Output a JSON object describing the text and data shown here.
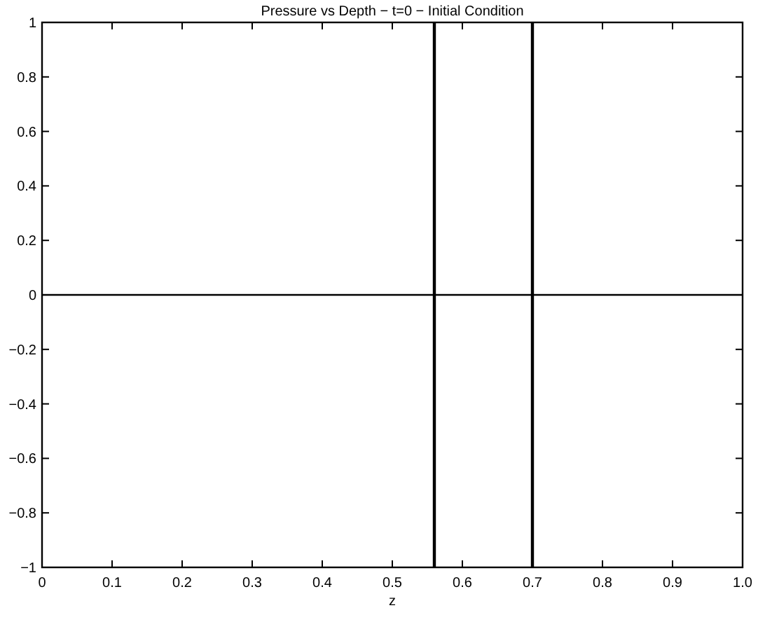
{
  "chart_data": {
    "type": "line",
    "title": "Pressure vs Depth − t=0 − Initial Condition",
    "xlabel": "z",
    "x": [
      0,
      1
    ],
    "series": [
      {
        "color": "#000000",
        "values": [
          0,
          0
        ]
      }
    ],
    "xlim": [
      0,
      1
    ],
    "xticks": [
      0,
      0.1,
      0.2,
      0.3,
      0.4,
      0.5,
      0.6,
      0.7,
      0.8,
      0.9,
      {
        "value": 1,
        "label": "1.0"
      }
    ],
    "ylim": [
      -1,
      1
    ],
    "yticks": [
      -1,
      -0.8,
      -0.6,
      -0.4,
      -0.2,
      0,
      0.2,
      0.4,
      0.6,
      0.8,
      1
    ],
    "ref_lines": [
      {
        "axis": "x",
        "value": 0.56,
        "color": "#000000"
      },
      {
        "axis": "x",
        "value": 0.7,
        "color": "#000000"
      }
    ],
    "grid": false,
    "marker": "none",
    "line_style": "solid"
  }
}
